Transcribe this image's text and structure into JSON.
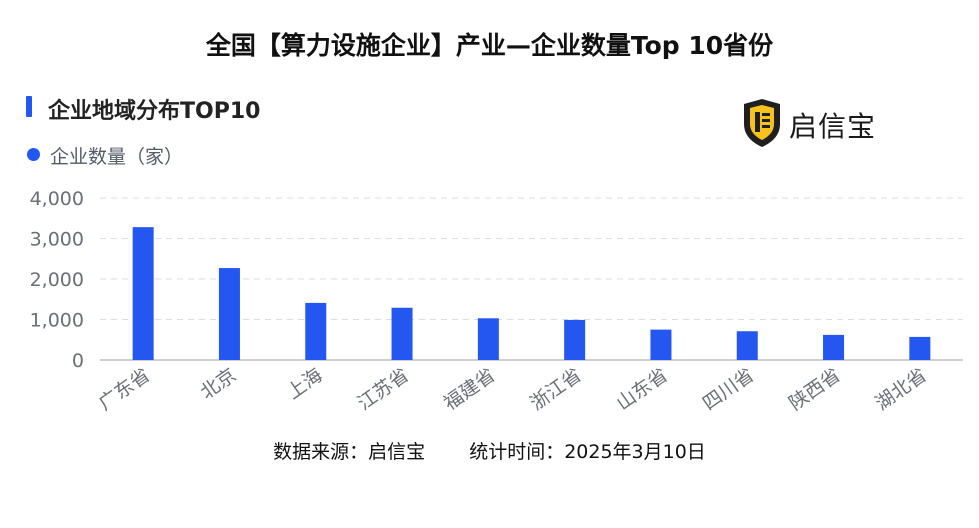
{
  "page": {
    "title": "全国【算力设施企业】产业—企业数量Top 10省份",
    "section_title": "企业地域分布TOP10",
    "brand": "启信宝",
    "footer_source": "数据来源：启信宝",
    "footer_time": "统计时间：2025年3月10日"
  },
  "colors": {
    "bar": "#2456f0",
    "accent": "#2456f0",
    "logo_yellow": "#f6c21b",
    "logo_dark": "#1f1f1f"
  },
  "chart_data": {
    "type": "bar",
    "categories": [
      "广东省",
      "北京",
      "上海",
      "江苏省",
      "福建省",
      "浙江省",
      "山东省",
      "四川省",
      "陕西省",
      "湖北省"
    ],
    "series": [
      {
        "name": "企业数量（家）",
        "values": [
          3280,
          2270,
          1410,
          1290,
          1030,
          990,
          750,
          710,
          620,
          570
        ]
      }
    ],
    "yticks": [
      "0",
      "1,000",
      "2,000",
      "3,000",
      "4,000"
    ],
    "ylim": [
      0,
      4000
    ],
    "grid": true,
    "legend_position": "top-left"
  }
}
